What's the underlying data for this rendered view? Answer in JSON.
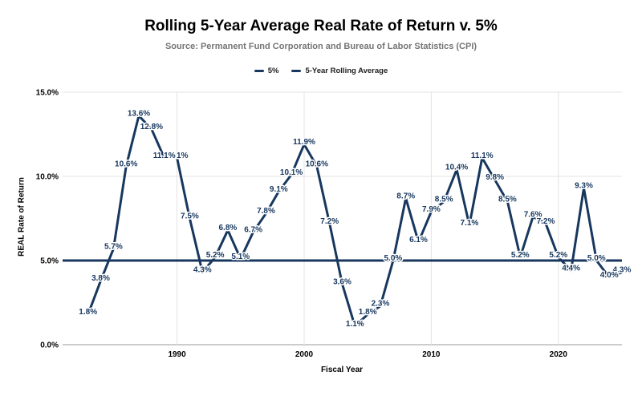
{
  "header": {
    "title": "Rolling 5-Year Average Real Rate of Return v. 5%",
    "subtitle": "Source: Permanent Fund Corporation and Bureau of Labor Statistics (CPI)"
  },
  "legend": {
    "items": [
      {
        "label": "5%"
      },
      {
        "label": "5-Year Rolling Average"
      }
    ]
  },
  "chart_data": {
    "type": "line",
    "title": "Rolling 5-Year Average Real Rate of Return v. 5%",
    "subtitle": "Source: Permanent Fund Corporation and Bureau of Labor Statistics (CPI)",
    "xlabel": "Fiscal Year",
    "ylabel": "REAL Rate of Return",
    "xlim": [
      1981,
      2025
    ],
    "ylim": [
      0,
      15
    ],
    "grid": true,
    "legend_position": "top-center",
    "data_label_format": "one decimal + %",
    "x_ticks": [
      {
        "value": 1990,
        "label": "1990"
      },
      {
        "value": 2000,
        "label": "2000"
      },
      {
        "value": 2010,
        "label": "2010"
      },
      {
        "value": 2020,
        "label": "2020"
      }
    ],
    "y_ticks": [
      {
        "value": 0,
        "label": "0.0%"
      },
      {
        "value": 5,
        "label": "5.0%"
      },
      {
        "value": 10,
        "label": "10.0%"
      },
      {
        "value": 15,
        "label": "15.0%"
      }
    ],
    "series": [
      {
        "name": "5%",
        "type": "constant-reference-line",
        "value": 5.0
      },
      {
        "name": "5-Year Rolling Average",
        "type": "line",
        "x": [
          1983,
          1984,
          1985,
          1986,
          1987,
          1988,
          1989,
          1990,
          1991,
          1992,
          1993,
          1994,
          1995,
          1996,
          1997,
          1998,
          1999,
          2000,
          2001,
          2002,
          2003,
          2004,
          2005,
          2006,
          2007,
          2008,
          2009,
          2010,
          2011,
          2012,
          2013,
          2014,
          2015,
          2016,
          2017,
          2018,
          2019,
          2020,
          2021,
          2022,
          2023,
          2024,
          2025
        ],
        "values": [
          1.8,
          3.8,
          5.7,
          10.6,
          13.6,
          12.8,
          11.1,
          11.1,
          7.5,
          4.3,
          5.2,
          6.8,
          5.1,
          6.7,
          7.8,
          9.1,
          10.1,
          11.9,
          10.6,
          7.2,
          3.6,
          1.1,
          1.8,
          2.3,
          5.0,
          8.7,
          6.1,
          7.9,
          8.5,
          10.4,
          7.1,
          11.1,
          9.8,
          8.5,
          5.2,
          7.6,
          7.2,
          5.2,
          4.4,
          9.3,
          5.0,
          4.0,
          4.3
        ]
      }
    ],
    "colors": {
      "series_line": "#17375E",
      "reference_line": "#17375E",
      "data_label": "#17375E",
      "grid": "#E3E3E3",
      "axis_line": "#999999",
      "title": "#000000",
      "subtitle": "#757575",
      "tick_label": "#000000"
    }
  }
}
